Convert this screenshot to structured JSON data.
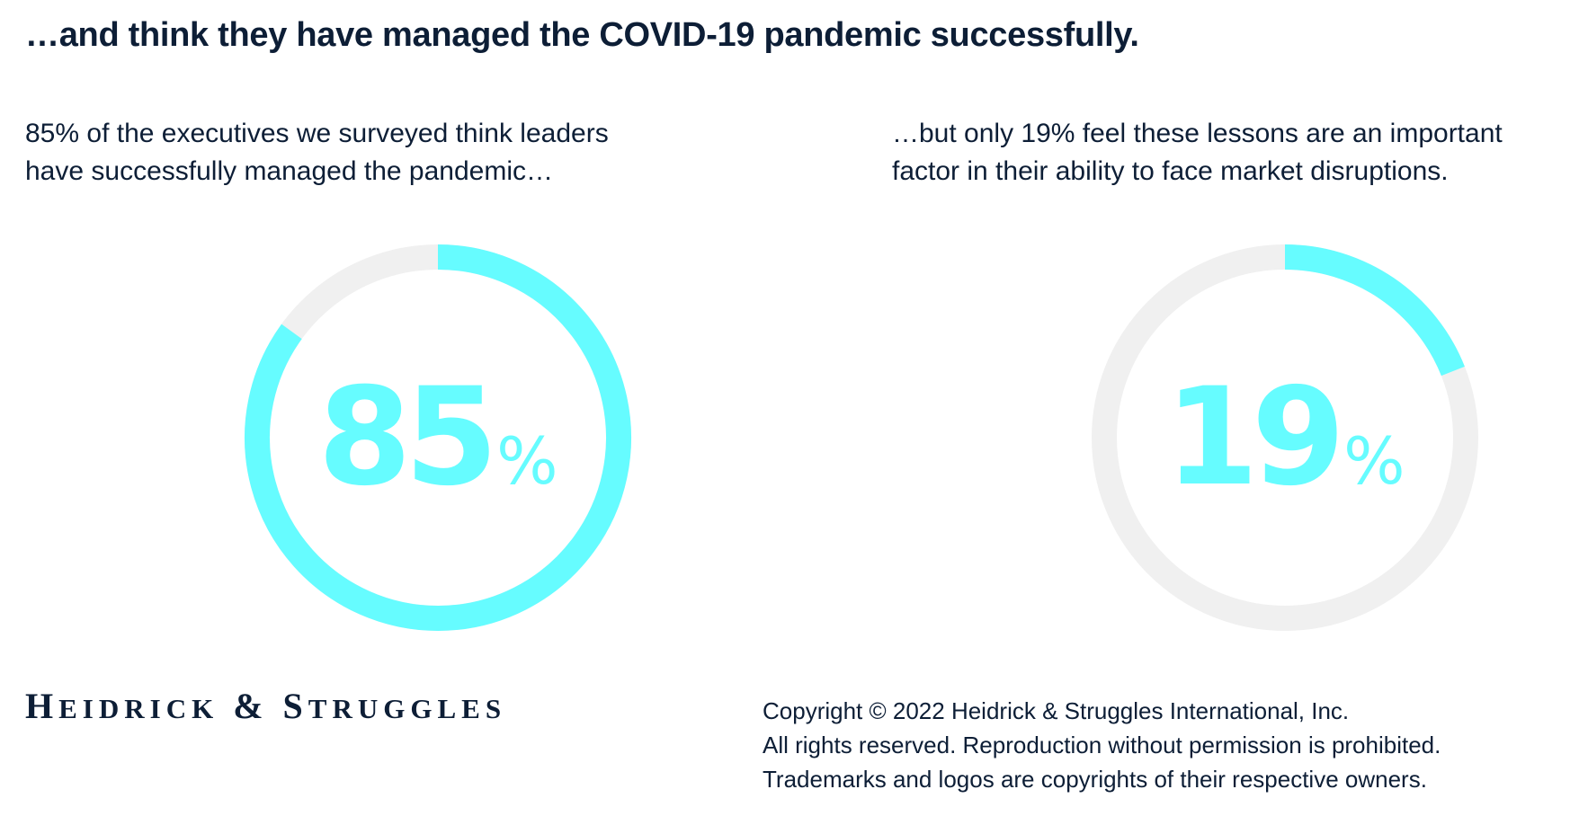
{
  "headline": "…and think they have managed the COVID-19 pandemic successfully.",
  "left_caption": {
    "line1": "85% of the executives we surveyed think leaders",
    "line2": "have successfully managed the pandemic…"
  },
  "right_caption": {
    "line1": "…but only 19% feel these lessons are an important",
    "line2": "factor in their ability to face market disruptions."
  },
  "chart_data": [
    {
      "type": "pie",
      "variant": "donut",
      "value": 85,
      "display_value": "85",
      "percent_sign": "%",
      "max": 100
    },
    {
      "type": "pie",
      "variant": "donut",
      "value": 19,
      "display_value": "19",
      "percent_sign": "%",
      "max": 100
    }
  ],
  "colors": {
    "accent": "#66fcff",
    "track": "#f0f0f0",
    "text": "#0d1e36"
  },
  "brand": {
    "logo_text": "Heidrick & Struggles"
  },
  "copyright": {
    "line1": "Copyright © 2022 Heidrick & Struggles International, Inc.",
    "line2": "All rights reserved. Reproduction without permission is prohibited.",
    "line3": "Trademarks and logos are copyrights of their respective owners."
  }
}
